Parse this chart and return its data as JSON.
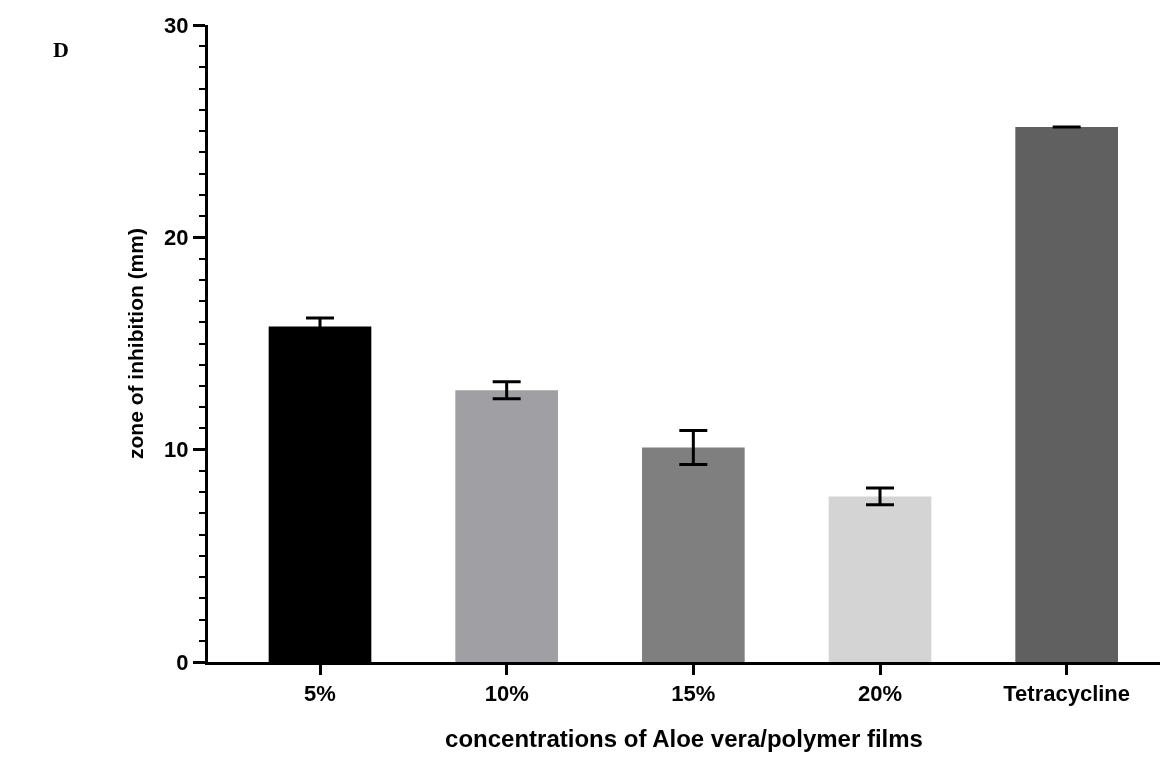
{
  "chart_data": {
    "type": "bar",
    "categories": [
      "5%",
      "10%",
      "15%",
      "20%",
      "Tetracycline"
    ],
    "values": [
      15.8,
      12.8,
      10.1,
      7.8,
      25.2
    ],
    "colors": [
      "#000000",
      "#a0a0a4",
      "#7f7f7f",
      "#d4d4d4",
      "#606060"
    ],
    "errors": [
      0.4,
      0.4,
      0.8,
      0.4,
      null
    ],
    "xlabel": "concentrations of Aloe vera/polymer films",
    "ylabel": "zone of inhibition (mm)",
    "ylim": [
      0,
      30
    ],
    "yticks": [
      0,
      10,
      20,
      30
    ],
    "annotations": [
      "D"
    ]
  }
}
